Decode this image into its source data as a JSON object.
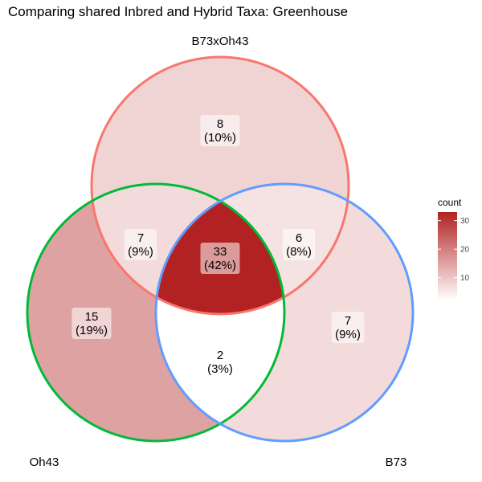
{
  "title": "Comparing shared Inbred and Hybrid Taxa: Greenhouse",
  "sets": [
    {
      "name": "B73xOh43",
      "color": "#F8766D"
    },
    {
      "name": "Oh43",
      "color": "#00BA38"
    },
    {
      "name": "B73",
      "color": "#619CFF"
    }
  ],
  "regions": [
    {
      "id": "b73xoh43-only",
      "count": "8",
      "percent": "(10%)",
      "value": 8
    },
    {
      "id": "b73xoh43-oh43",
      "count": "7",
      "percent": "(9%)",
      "value": 7
    },
    {
      "id": "all-three",
      "count": "33",
      "percent": "(42%)",
      "value": 33
    },
    {
      "id": "b73xoh43-b73",
      "count": "6",
      "percent": "(8%)",
      "value": 6
    },
    {
      "id": "oh43-only",
      "count": "15",
      "percent": "(19%)",
      "value": 15
    },
    {
      "id": "b73-only",
      "count": "7",
      "percent": "(9%)",
      "value": 7
    },
    {
      "id": "oh43-b73",
      "count": "2",
      "percent": "(3%)",
      "value": 2
    }
  ],
  "legend": {
    "title": "count",
    "ticks": [
      "10",
      "20",
      "30"
    ],
    "tick_values": [
      10,
      20,
      30
    ],
    "range": [
      2,
      33
    ],
    "low_color": "#FFFFFF",
    "high_color": "#B22222"
  }
}
